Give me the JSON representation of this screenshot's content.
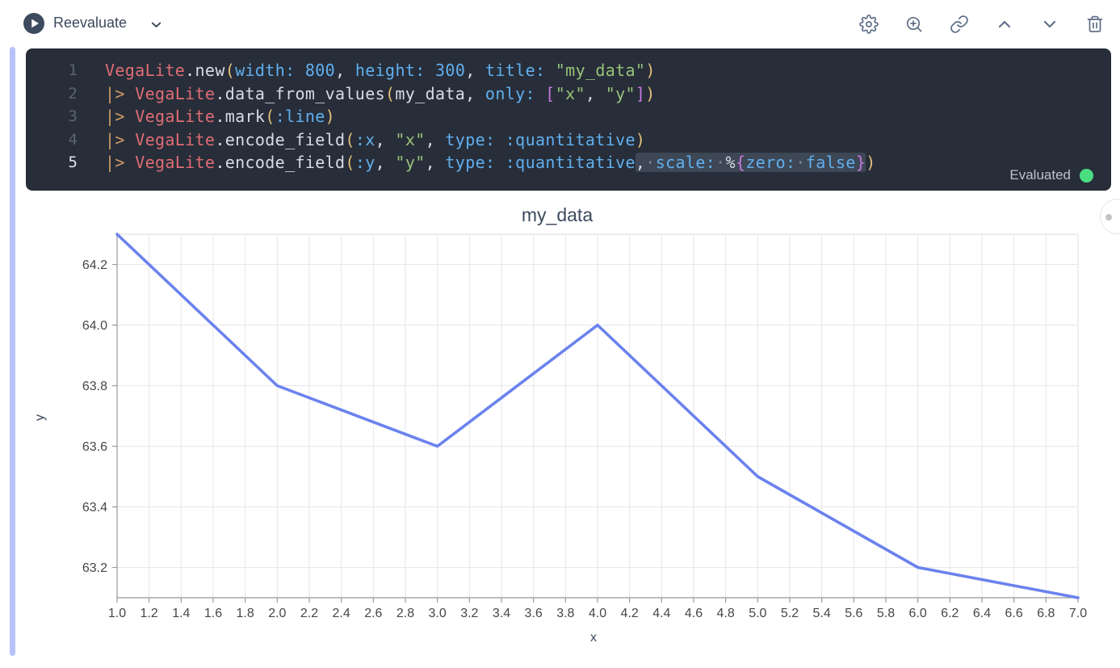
{
  "toolbar": {
    "reevaluate_label": "Reevaluate",
    "icons": [
      "settings",
      "amplify",
      "link",
      "move-up",
      "move-down",
      "delete"
    ]
  },
  "editor": {
    "status_label": "Evaluated",
    "status_color": "#4ade80",
    "lines": [
      {
        "n": "1",
        "active": false,
        "tokens": [
          [
            "mod",
            "VegaLite"
          ],
          [
            "txt",
            ".new"
          ],
          [
            "par",
            "("
          ],
          [
            "kw",
            "width:"
          ],
          [
            "txt",
            " "
          ],
          [
            "kw",
            "800"
          ],
          [
            "txt",
            ", "
          ],
          [
            "kw",
            "height:"
          ],
          [
            "txt",
            " "
          ],
          [
            "kw",
            "300"
          ],
          [
            "txt",
            ", "
          ],
          [
            "kw",
            "title:"
          ],
          [
            "txt",
            " "
          ],
          [
            "str",
            "\"my_data\""
          ],
          [
            "par",
            ")"
          ]
        ]
      },
      {
        "n": "2",
        "active": false,
        "tokens": [
          [
            "op",
            "|> "
          ],
          [
            "mod",
            "VegaLite"
          ],
          [
            "txt",
            ".data_from_values"
          ],
          [
            "par",
            "("
          ],
          [
            "txt",
            "my_data, "
          ],
          [
            "kw",
            "only:"
          ],
          [
            "txt",
            " "
          ],
          [
            "brk",
            "["
          ],
          [
            "str",
            "\"x\""
          ],
          [
            "txt",
            ", "
          ],
          [
            "str",
            "\"y\""
          ],
          [
            "brk",
            "]"
          ],
          [
            "par",
            ")"
          ]
        ]
      },
      {
        "n": "3",
        "active": false,
        "tokens": [
          [
            "op",
            "|> "
          ],
          [
            "mod",
            "VegaLite"
          ],
          [
            "txt",
            ".mark"
          ],
          [
            "par",
            "("
          ],
          [
            "kw",
            ":line"
          ],
          [
            "par",
            ")"
          ]
        ]
      },
      {
        "n": "4",
        "active": false,
        "tokens": [
          [
            "op",
            "|> "
          ],
          [
            "mod",
            "VegaLite"
          ],
          [
            "txt",
            ".encode_field"
          ],
          [
            "par",
            "("
          ],
          [
            "kw",
            ":x"
          ],
          [
            "txt",
            ", "
          ],
          [
            "str",
            "\"x\""
          ],
          [
            "txt",
            ", "
          ],
          [
            "kw",
            "type:"
          ],
          [
            "txt",
            " "
          ],
          [
            "kw",
            ":quantitative"
          ],
          [
            "par",
            ")"
          ]
        ]
      },
      {
        "n": "5",
        "active": true,
        "tokens": [
          [
            "op",
            "|> "
          ],
          [
            "mod",
            "VegaLite"
          ],
          [
            "txt",
            ".encode_field"
          ],
          [
            "par",
            "("
          ],
          [
            "kw",
            ":y"
          ],
          [
            "txt",
            ", "
          ],
          [
            "str",
            "\"y\""
          ],
          [
            "txt",
            ", "
          ],
          [
            "kw",
            "type:"
          ],
          [
            "txt",
            " "
          ],
          [
            "kw",
            ":quantitative"
          ],
          [
            "txt",
            ", ",
            "sel"
          ],
          [
            "kw",
            "scale:",
            "sel"
          ],
          [
            "txt",
            " ",
            "sel"
          ],
          [
            "txt",
            "%",
            "sel"
          ],
          [
            "brk",
            "{",
            "sel"
          ],
          [
            "kw",
            "zero:",
            "sel"
          ],
          [
            "txt",
            " ",
            "sel"
          ],
          [
            "kw",
            "false",
            "sel"
          ],
          [
            "brk",
            "}",
            "sel"
          ],
          [
            "par",
            ")"
          ]
        ]
      }
    ]
  },
  "chart_data": {
    "type": "line",
    "title": "my_data",
    "xlabel": "x",
    "ylabel": "y",
    "x": [
      1.0,
      2.0,
      3.0,
      4.0,
      5.0,
      6.0,
      7.0
    ],
    "y": [
      64.3,
      63.8,
      63.6,
      64.0,
      63.5,
      63.2,
      63.1
    ],
    "xlim": [
      1.0,
      7.0
    ],
    "ylim": [
      63.1,
      64.3
    ],
    "x_ticks": [
      "1.0",
      "1.2",
      "1.4",
      "1.6",
      "1.8",
      "2.0",
      "2.2",
      "2.4",
      "2.6",
      "2.8",
      "3.0",
      "3.2",
      "3.4",
      "3.6",
      "3.8",
      "4.0",
      "4.2",
      "4.4",
      "4.6",
      "4.8",
      "5.0",
      "5.2",
      "5.4",
      "5.6",
      "5.8",
      "6.0",
      "6.2",
      "6.4",
      "6.6",
      "6.8",
      "7.0"
    ],
    "y_ticks": [
      "63.2",
      "63.4",
      "63.6",
      "63.8",
      "64.0",
      "64.2"
    ],
    "grid": true,
    "legend": false,
    "line_color": "#6b82ee",
    "grid_color": "#e6e6ec",
    "axis_color": "#999999",
    "label_color": "#474747",
    "title_color": "#3c4a5c"
  }
}
